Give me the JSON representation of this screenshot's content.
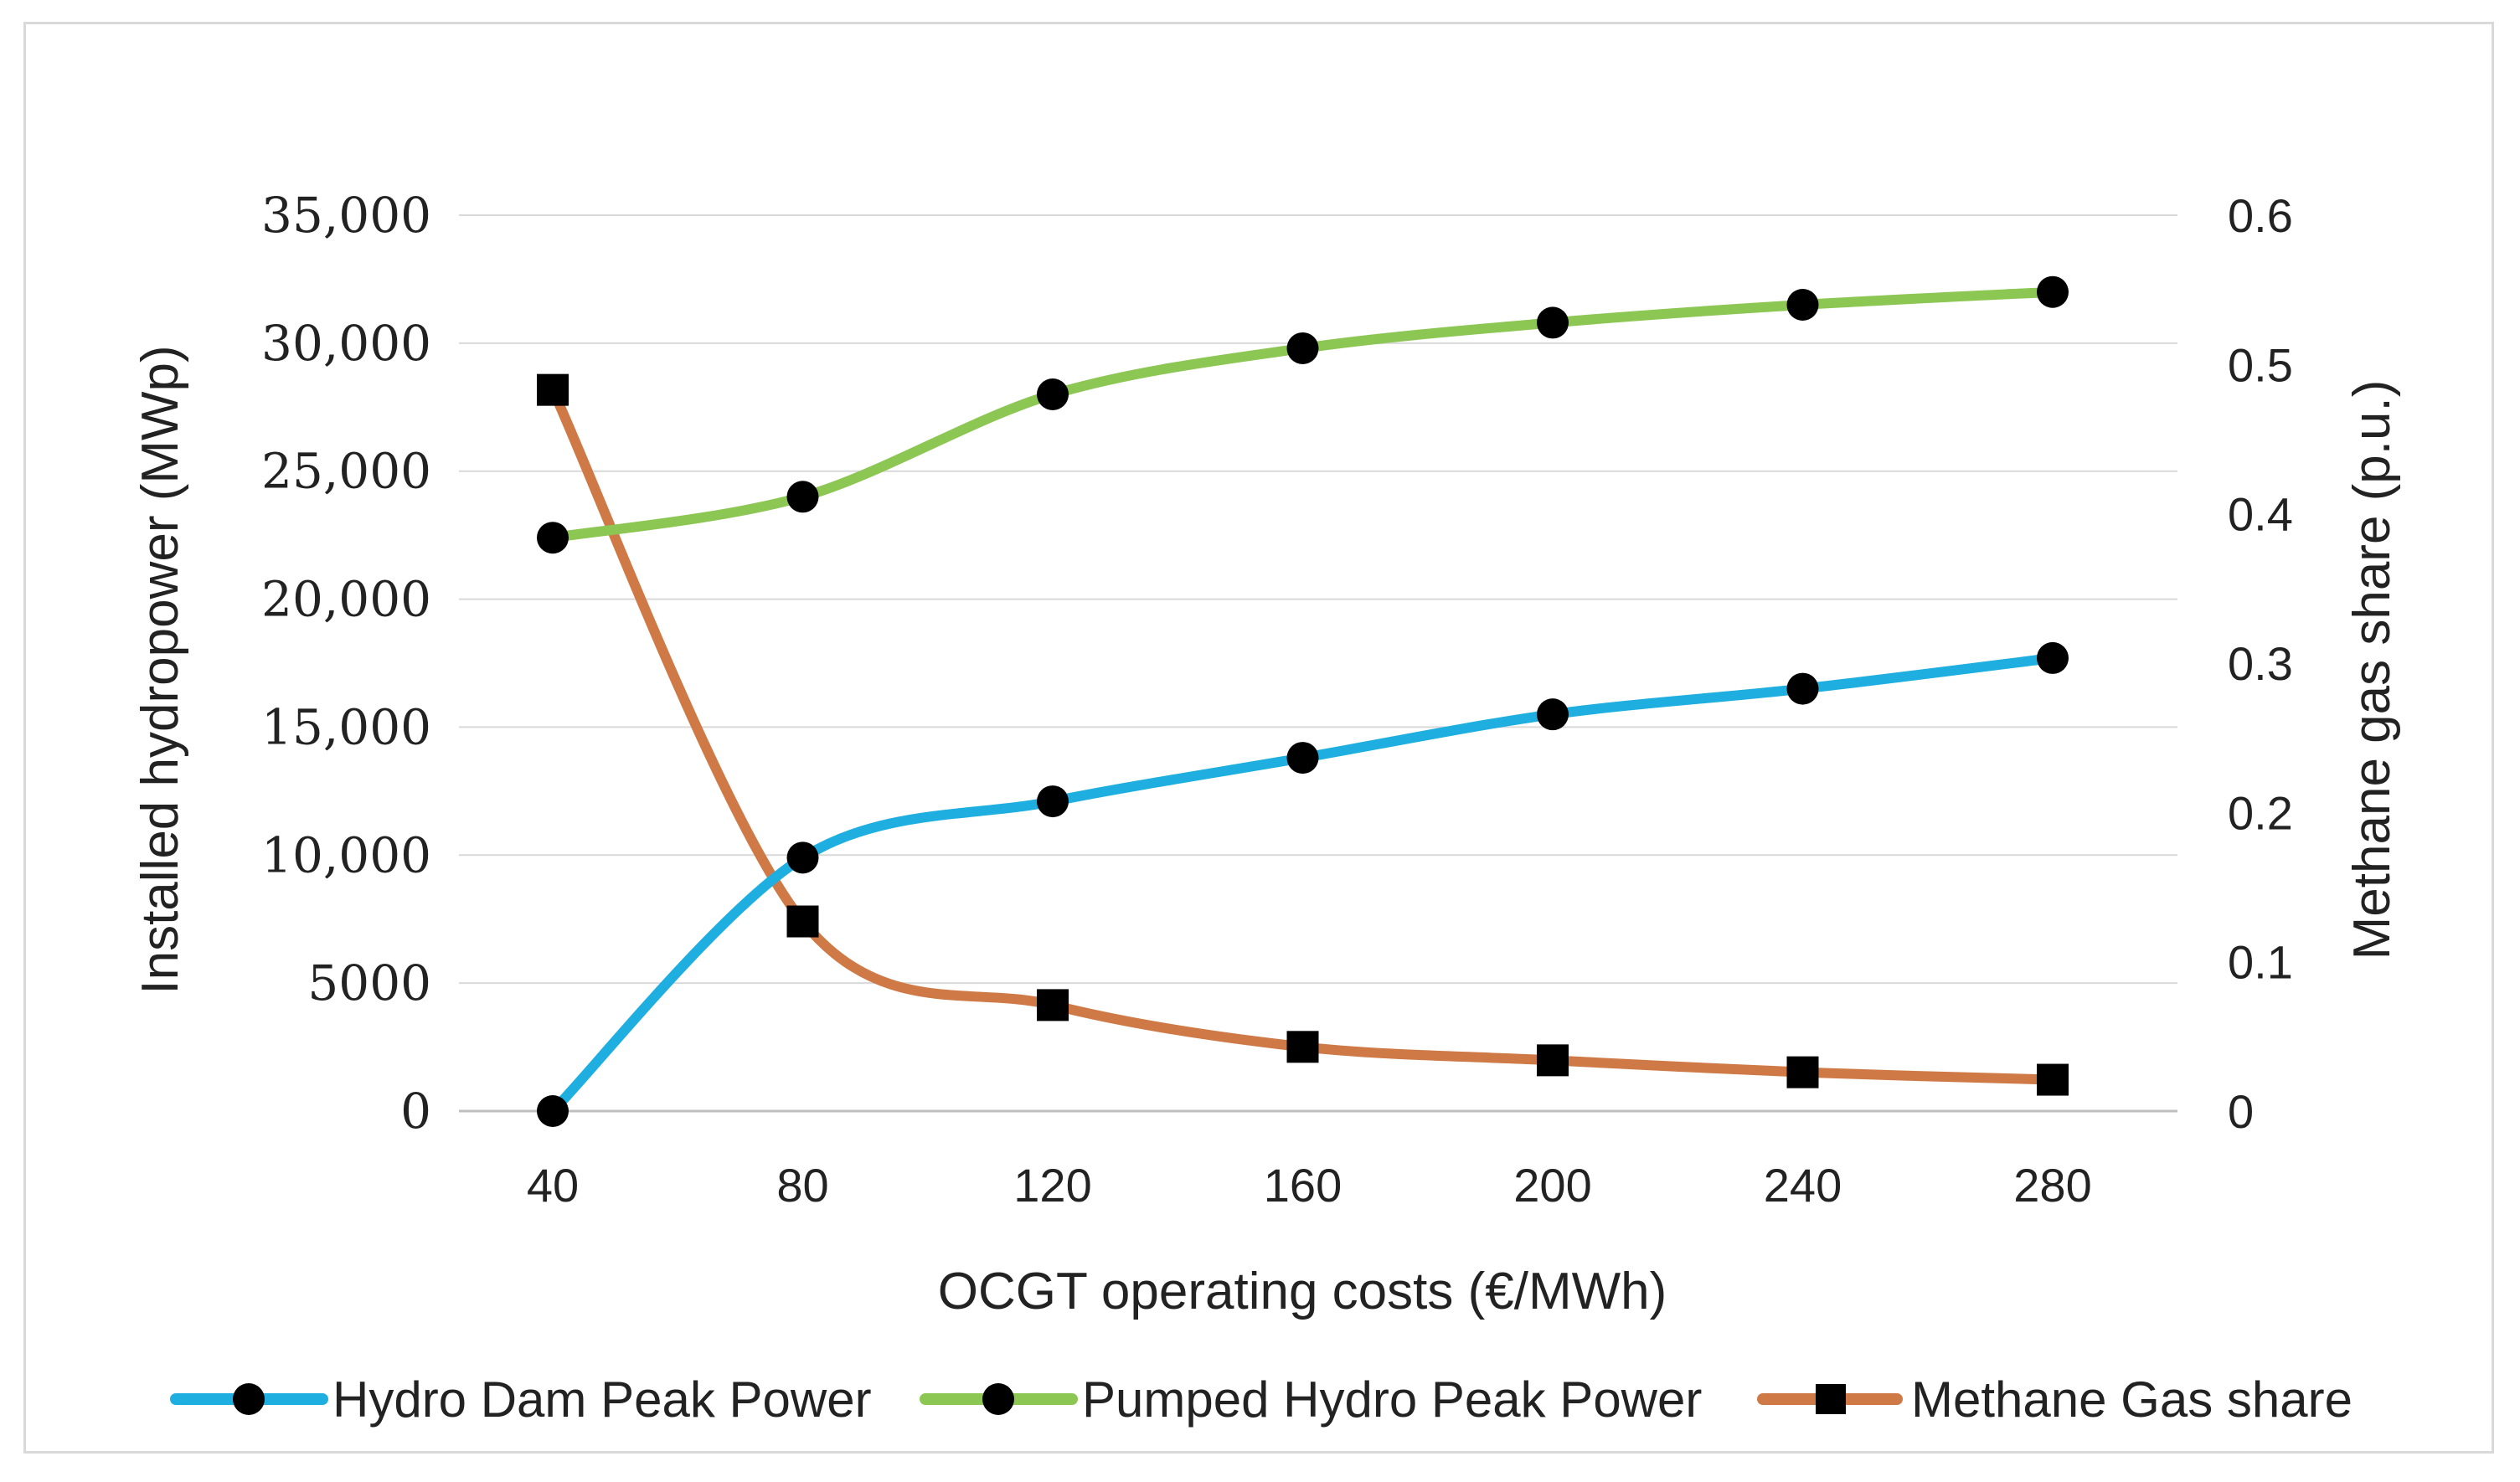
{
  "chart_data": {
    "type": "line",
    "xlabel": "OCGT operating costs (€/MWh)",
    "ylabel": "Installed hydropower (MWp)",
    "y2label": "Methane gas share (p.u.)",
    "x": [
      40,
      80,
      120,
      160,
      200,
      240,
      280
    ],
    "x_tick_labels": [
      "40",
      "80",
      "120",
      "160",
      "200",
      "240",
      "280"
    ],
    "ylim": [
      0,
      35000
    ],
    "y_ticks": [
      0,
      5000,
      10000,
      15000,
      20000,
      25000,
      30000,
      35000
    ],
    "y_tick_labels": [
      "0",
      "5000",
      "10,000",
      "15,000",
      "20,000",
      "25,000",
      "30,000",
      "35,000"
    ],
    "y2lim": [
      0,
      0.6
    ],
    "y2_ticks": [
      0,
      0.1,
      0.2,
      0.3,
      0.4,
      0.5,
      0.6
    ],
    "y2_tick_labels": [
      "0",
      "0.1",
      "0.2",
      "0.3",
      "0.4",
      "0.5",
      "0.6"
    ],
    "grid": true,
    "legend_position": "bottom",
    "series": [
      {
        "name": "Hydro Dam Peak Power",
        "axis": "left",
        "color": "#1eaee0",
        "marker": "circle",
        "values": [
          0,
          9900,
          12100,
          13800,
          15500,
          16500,
          17700
        ]
      },
      {
        "name": "Pumped Hydro Peak Power",
        "axis": "left",
        "color": "#8cc653",
        "marker": "circle",
        "values": [
          22400,
          24000,
          28000,
          29800,
          30800,
          31500,
          32000
        ]
      },
      {
        "name": "Methane Gas share",
        "axis": "right",
        "color": "#cf7a46",
        "marker": "square",
        "values": [
          0.483,
          0.127,
          0.071,
          0.043,
          0.034,
          0.026,
          0.021
        ]
      }
    ]
  }
}
